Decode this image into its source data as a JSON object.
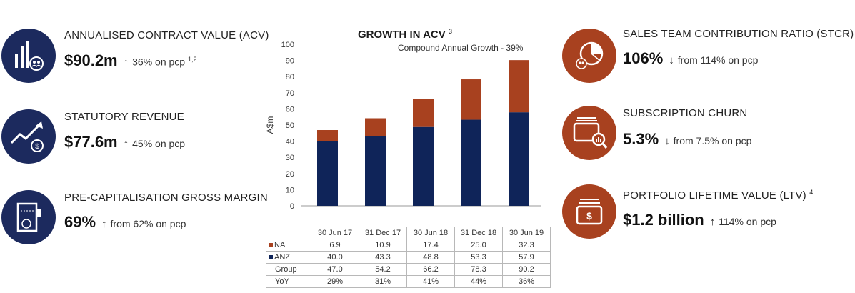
{
  "colors": {
    "navy": "#1c2a5e",
    "rust": "#a8411f",
    "na_bar": "#a8411f",
    "anz_bar": "#0f2459"
  },
  "kpis_left": [
    {
      "icon": "bar-chart-users-icon",
      "title": "ANNUALISED CONTRACT VALUE (ACV)",
      "value": "$90.2m",
      "arrow": "↑",
      "change": "36% on pcp",
      "note": "1,2"
    },
    {
      "icon": "growth-arrow-dollar-icon",
      "title": "STATUTORY REVENUE",
      "value": "$77.6m",
      "arrow": "↑",
      "change": "45% on pcp",
      "note": ""
    },
    {
      "icon": "door-users-icon",
      "title": "PRE-CAPITALISATION GROSS MARGIN",
      "value": "69%",
      "arrow": "↑",
      "change": "from 62% on pcp",
      "note": ""
    }
  ],
  "kpis_right": [
    {
      "icon": "pie-chart-users-icon",
      "title": "SALES TEAM CONTRIBUTION RATIO (STCR)",
      "value": "106%",
      "arrow": "↓",
      "change": "from 114% on pcp",
      "note": ""
    },
    {
      "icon": "cards-magnifier-icon",
      "title": "SUBSCRIPTION CHURN",
      "value": "5.3%",
      "arrow": "↓",
      "change": "from 7.5% on pcp",
      "note": ""
    },
    {
      "icon": "dollar-cards-icon",
      "title": "PORTFOLIO LIFETIME VALUE (LTV)",
      "value": "$1.2 billion",
      "arrow": "↑",
      "change": "114% on pcp",
      "note": "4"
    }
  ],
  "chart_data": {
    "type": "bar",
    "stacked": true,
    "title": "GROWTH IN ACV",
    "title_note": "3",
    "subtitle": "Compound Annual Growth - 39%",
    "ylabel": "A$m",
    "ylim": [
      0,
      100
    ],
    "yticks": [
      0,
      10,
      20,
      30,
      40,
      50,
      60,
      70,
      80,
      90,
      100
    ],
    "categories": [
      "30 Jun 17",
      "31 Dec 17",
      "30 Jun 18",
      "31 Dec 18",
      "30 Jun 19"
    ],
    "series": [
      {
        "name": "ANZ",
        "values": [
          40.0,
          43.3,
          48.8,
          53.3,
          57.9
        ]
      },
      {
        "name": "NA",
        "values": [
          6.9,
          10.9,
          17.4,
          25.0,
          32.3
        ]
      }
    ],
    "table": {
      "rows": [
        {
          "label": "NA",
          "values": [
            "6.9",
            "10.9",
            "17.4",
            "25.0",
            "32.3"
          ]
        },
        {
          "label": "ANZ",
          "values": [
            "40.0",
            "43.3",
            "48.8",
            "53.3",
            "57.9"
          ]
        },
        {
          "label": "Group",
          "values": [
            "47.0",
            "54.2",
            "66.2",
            "78.3",
            "90.2"
          ]
        },
        {
          "label": "YoY",
          "values": [
            "29%",
            "31%",
            "41%",
            "44%",
            "36%"
          ]
        }
      ]
    },
    "grid": false
  }
}
